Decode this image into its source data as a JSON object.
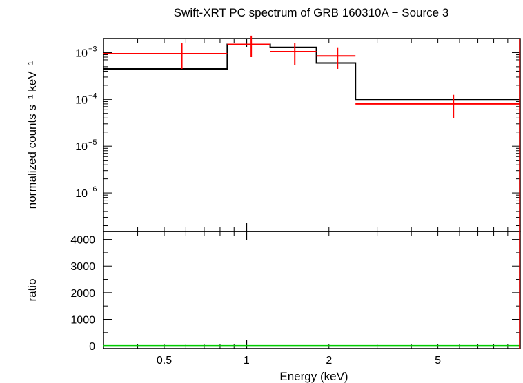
{
  "chart_data": [
    {
      "type": "line",
      "title": "Swift-XRT PC spectrum of GRB 160310A − Source 3",
      "ylabel": "normalized counts s⁻¹ keV⁻¹",
      "xscale": "log",
      "yscale": "log",
      "xlim": [
        0.3,
        10
      ],
      "ylim": [
        1.5e-07,
        0.002
      ],
      "y_ticks": [
        {
          "value": 1e-06,
          "label_base": "10",
          "label_exp": "−6"
        },
        {
          "value": 1e-05,
          "label_base": "10",
          "label_exp": "−5"
        },
        {
          "value": 0.0001,
          "label_base": "10",
          "label_exp": "−4"
        },
        {
          "value": 0.001,
          "label_base": "10",
          "label_exp": "−3"
        }
      ],
      "series": [
        {
          "kind": "data",
          "color": "#ff0000",
          "points": [
            {
              "x": 0.58,
              "xlo": 0.3,
              "xhi": 0.85,
              "y": 0.00095,
              "ylo": 0.00045,
              "yhi": 0.0016
            },
            {
              "x": 1.04,
              "xlo": 0.85,
              "xhi": 1.22,
              "y": 0.0015,
              "ylo": 0.0008,
              "yhi": 0.0023
            },
            {
              "x": 1.5,
              "xlo": 1.22,
              "xhi": 1.8,
              "y": 0.00105,
              "ylo": 0.00055,
              "yhi": 0.0016
            },
            {
              "x": 2.15,
              "xlo": 1.8,
              "xhi": 2.5,
              "y": 0.00085,
              "ylo": 0.00045,
              "yhi": 0.0013
            },
            {
              "x": 5.7,
              "xlo": 2.5,
              "xhi": 10,
              "y": 8e-05,
              "ylo": 4e-05,
              "yhi": 0.000125
            }
          ]
        },
        {
          "kind": "model",
          "color": "#000000",
          "steps": [
            {
              "x0": 0.3,
              "x1": 0.85,
              "y": 0.00045
            },
            {
              "x0": 0.85,
              "x1": 1.22,
              "y": 0.0015
            },
            {
              "x0": 1.22,
              "x1": 1.8,
              "y": 0.0013
            },
            {
              "x0": 1.8,
              "x1": 2.5,
              "y": 0.0006
            },
            {
              "x0": 2.5,
              "x1": 10,
              "y": 0.0001
            }
          ]
        }
      ]
    },
    {
      "type": "line",
      "xlabel": "Energy (keV)",
      "ylabel": "ratio",
      "xscale": "log",
      "xlim": [
        0.3,
        10
      ],
      "ylim": [
        -100,
        4300
      ],
      "y_ticks": [
        0,
        1000,
        2000,
        3000,
        4000
      ],
      "x_ticks": [
        {
          "value": 0.5,
          "label": "0.5"
        },
        {
          "value": 1,
          "label": "1"
        },
        {
          "value": 2,
          "label": "2"
        },
        {
          "value": 5,
          "label": "5"
        }
      ],
      "series": [
        {
          "kind": "ratio",
          "color": "#00cc00",
          "values": [
            {
              "x": 0.3,
              "y": 1
            },
            {
              "x": 10,
              "y": 1
            }
          ]
        },
        {
          "kind": "ratio-bar",
          "color": "#cc0000",
          "x": 9.95,
          "y_from": -100,
          "y_to": 4300
        }
      ]
    }
  ]
}
